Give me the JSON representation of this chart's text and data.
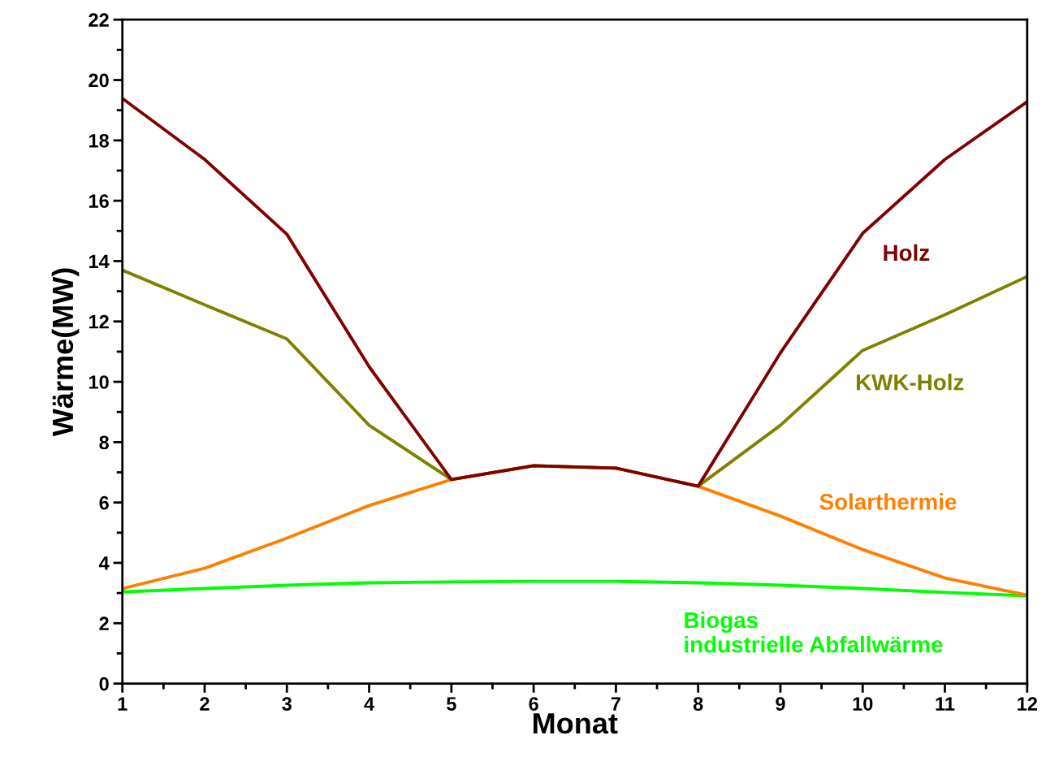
{
  "chart_data": {
    "type": "line",
    "xlabel": "Monat",
    "ylabel": "Wärme(MW)",
    "x": [
      1,
      2,
      3,
      4,
      5,
      6,
      7,
      8,
      9,
      10,
      11,
      12
    ],
    "xlim": [
      1,
      12
    ],
    "xticks": [
      1,
      2,
      3,
      4,
      5,
      6,
      7,
      8,
      9,
      10,
      11,
      12
    ],
    "ylim": [
      0,
      22
    ],
    "yticks": [
      0,
      2,
      4,
      6,
      8,
      10,
      12,
      14,
      16,
      18,
      20,
      22
    ],
    "grid": false,
    "legend": false,
    "marker": "none",
    "line_style": "solid",
    "series": [
      {
        "name": "Biogas\nindustrielle Abfallwärme",
        "color": "#00ff00",
        "values": [
          3.04,
          3.15,
          3.26,
          3.34,
          3.37,
          3.39,
          3.39,
          3.34,
          3.26,
          3.15,
          3.02,
          2.91
        ]
      },
      {
        "name": "Solarthermie",
        "color": "#ff8000",
        "values": [
          3.15,
          3.82,
          4.82,
          5.9,
          6.76,
          7.22,
          7.14,
          6.54,
          5.55,
          4.44,
          3.5,
          2.93
        ]
      },
      {
        "name": "KWK-Holz",
        "color": "#808000",
        "values": [
          13.7,
          12.55,
          11.42,
          8.56,
          6.76,
          7.22,
          7.14,
          6.54,
          8.56,
          11.04,
          12.22,
          13.49
        ]
      },
      {
        "name": "Holz",
        "color": "#800000",
        "values": [
          19.39,
          17.37,
          14.89,
          10.5,
          6.76,
          7.22,
          7.14,
          6.54,
          10.96,
          14.92,
          17.37,
          19.28
        ]
      }
    ]
  }
}
